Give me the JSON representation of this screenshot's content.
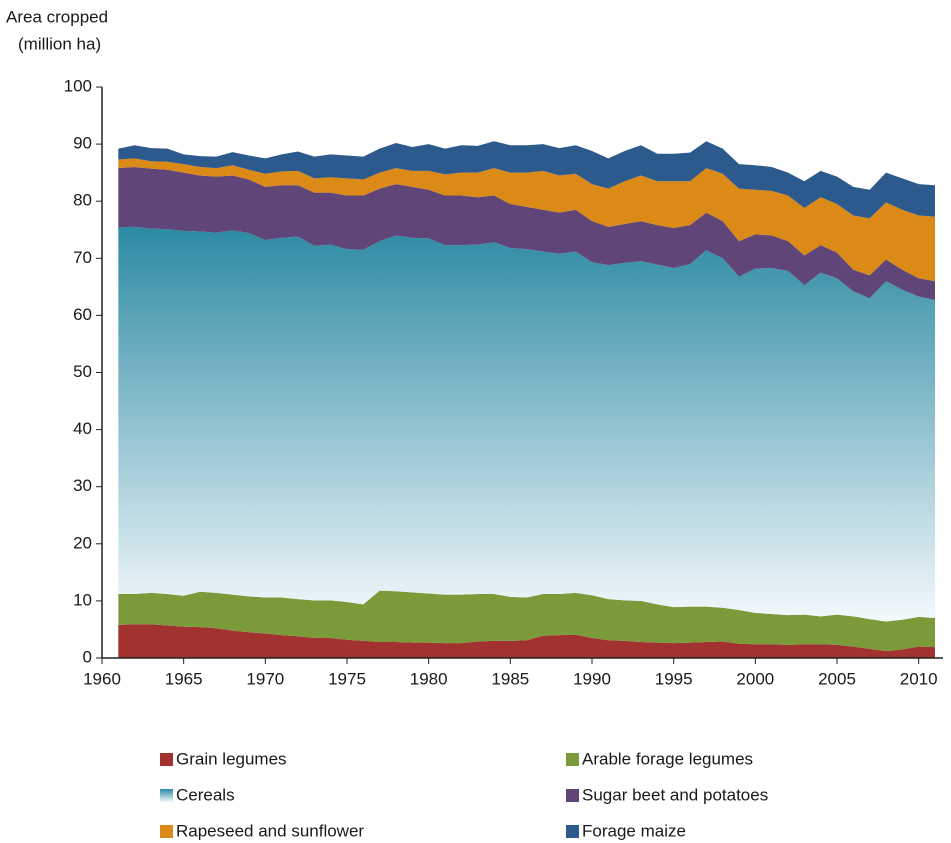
{
  "chart_data": {
    "type": "stacked_area",
    "ylabel": [
      "Area cropped",
      "(million ha)"
    ],
    "x": [
      1961,
      1962,
      1963,
      1964,
      1965,
      1966,
      1967,
      1968,
      1969,
      1970,
      1971,
      1972,
      1973,
      1974,
      1975,
      1976,
      1977,
      1978,
      1979,
      1980,
      1981,
      1982,
      1983,
      1984,
      1985,
      1986,
      1987,
      1988,
      1989,
      1990,
      1991,
      1992,
      1993,
      1994,
      1995,
      1996,
      1997,
      1998,
      1999,
      2000,
      2001,
      2002,
      2003,
      2004,
      2005,
      2006,
      2007,
      2008,
      2009,
      2010,
      2011
    ],
    "xlim": [
      1960,
      2011
    ],
    "xticks": [
      1960,
      1965,
      1970,
      1975,
      1980,
      1985,
      1990,
      1995,
      2000,
      2005,
      2010
    ],
    "ylim": [
      0,
      100
    ],
    "yticks": [
      0,
      10,
      20,
      30,
      40,
      50,
      60,
      70,
      80,
      90,
      100
    ],
    "series": [
      {
        "name": "Grain legumes",
        "color": "#a23230",
        "values": [
          5.8,
          5.9,
          5.9,
          5.7,
          5.5,
          5.4,
          5.2,
          4.8,
          4.5,
          4.3,
          4.0,
          3.8,
          3.5,
          3.5,
          3.2,
          3.0,
          2.8,
          2.8,
          2.7,
          2.7,
          2.6,
          2.6,
          2.9,
          3.0,
          3.0,
          3.1,
          3.9,
          4.0,
          4.1,
          3.5,
          3.1,
          3.0,
          2.8,
          2.7,
          2.6,
          2.7,
          2.8,
          2.9,
          2.5,
          2.4,
          2.4,
          2.3,
          2.4,
          2.4,
          2.3,
          2.0,
          1.6,
          1.2,
          1.5,
          2.0,
          1.9
        ]
      },
      {
        "name": "Arable forage legumes",
        "color": "#7b9b3b",
        "values": [
          5.4,
          5.3,
          5.5,
          5.5,
          5.4,
          6.2,
          6.2,
          6.3,
          6.3,
          6.3,
          6.6,
          6.5,
          6.6,
          6.6,
          6.6,
          6.4,
          9.0,
          8.9,
          8.8,
          8.6,
          8.5,
          8.5,
          8.3,
          8.2,
          7.7,
          7.5,
          7.3,
          7.2,
          7.3,
          7.5,
          7.2,
          7.1,
          7.2,
          6.7,
          6.3,
          6.3,
          6.2,
          5.9,
          5.9,
          5.5,
          5.3,
          5.2,
          5.2,
          4.9,
          5.3,
          5.3,
          5.2,
          5.2,
          5.2,
          5.2,
          5.1
        ]
      },
      {
        "name": "Cereals",
        "color": "#2c8aa3",
        "values": [
          64.2,
          64.3,
          63.8,
          63.9,
          63.9,
          63.1,
          63.1,
          63.8,
          63.6,
          62.6,
          63.0,
          63.5,
          62.1,
          62.3,
          61.8,
          62.1,
          61.2,
          62.3,
          62.1,
          62.2,
          61.2,
          61.2,
          61.2,
          61.6,
          61.1,
          61.0,
          60.0,
          59.6,
          59.8,
          58.3,
          58.5,
          59.1,
          59.5,
          59.5,
          59.4,
          60.0,
          62.4,
          61.2,
          58.4,
          60.3,
          60.6,
          60.3,
          57.7,
          60.2,
          58.9,
          56.9,
          56.2,
          59.6,
          57.8,
          56.1,
          55.7
        ]
      },
      {
        "name": "Sugar beet and potatoes",
        "color": "#604678",
        "values": [
          10.4,
          10.5,
          10.5,
          10.4,
          10.2,
          9.8,
          9.8,
          9.6,
          9.4,
          9.3,
          9.2,
          9.0,
          9.3,
          9.1,
          9.4,
          9.5,
          9.2,
          9.0,
          8.9,
          8.5,
          8.7,
          8.7,
          8.3,
          8.2,
          7.7,
          7.4,
          7.3,
          7.2,
          7.3,
          7.2,
          6.7,
          6.8,
          7.0,
          6.9,
          7.0,
          6.8,
          6.6,
          6.5,
          6.2,
          6.0,
          5.7,
          5.2,
          5.2,
          4.8,
          4.5,
          3.8,
          4.0,
          3.8,
          3.5,
          3.2,
          3.3
        ]
      },
      {
        "name": "Rapeseed and sunflower",
        "color": "#db8a17",
        "values": [
          1.5,
          1.5,
          1.3,
          1.4,
          1.5,
          1.5,
          1.5,
          1.8,
          1.7,
          2.3,
          2.4,
          2.5,
          2.5,
          2.7,
          3.0,
          2.8,
          2.8,
          2.8,
          2.8,
          3.3,
          3.7,
          4.0,
          4.3,
          4.8,
          5.5,
          6.0,
          6.8,
          6.5,
          6.3,
          6.5,
          6.7,
          7.5,
          8.0,
          7.7,
          8.2,
          7.7,
          7.8,
          8.3,
          9.2,
          7.8,
          7.8,
          8.0,
          8.3,
          8.4,
          8.5,
          9.5,
          10.0,
          10.0,
          10.5,
          11.0,
          11.3
        ]
      },
      {
        "name": "Forage maize",
        "color": "#2d5a8c",
        "values": [
          1.9,
          2.3,
          2.3,
          2.3,
          1.7,
          1.9,
          2.0,
          2.3,
          2.5,
          2.7,
          3.0,
          3.4,
          3.8,
          4.0,
          4.0,
          4.0,
          4.2,
          4.4,
          4.2,
          4.7,
          4.5,
          4.8,
          4.7,
          4.7,
          4.8,
          4.8,
          4.7,
          4.8,
          5.0,
          5.8,
          5.3,
          5.3,
          5.3,
          4.8,
          4.8,
          5.0,
          4.7,
          4.4,
          4.3,
          4.3,
          4.2,
          4.0,
          4.7,
          4.6,
          4.8,
          5.0,
          5.0,
          5.2,
          5.5,
          5.5,
          5.5
        ]
      }
    ]
  }
}
